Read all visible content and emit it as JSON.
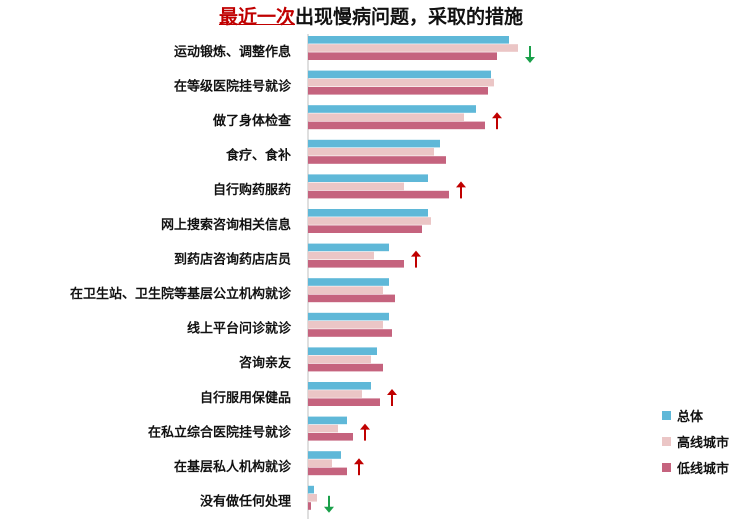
{
  "title": {
    "emphasis": "最近一次",
    "rest": "出现慢病问题，采取的措施"
  },
  "colors": {
    "total": "#5fb8d8",
    "high_tier": "#ebc6c6",
    "low_tier": "#c5637e",
    "up_arrow": "#c00000",
    "down_arrow": "#1aa04a"
  },
  "chart_data": {
    "type": "bar",
    "orientation": "horizontal",
    "title": "最近一次出现慢病问题，采取的措施",
    "categories": [
      "运动锻炼、调整作息",
      "在等级医院挂号就诊",
      "做了身体检查",
      "食疗、食补",
      "自行购药服药",
      "网上搜索咨询相关信息",
      "到药店咨询药店店员",
      "在卫生站、卫生院等基层公立机构就诊",
      "线上平台问诊就诊",
      "咨询亲友",
      "自行服用保健品",
      "在私立综合医院挂号就诊",
      "在基层私人机构就诊",
      "没有做任何处理"
    ],
    "series": [
      {
        "name": "总体",
        "values": [
          67,
          61,
          56,
          44,
          40,
          40,
          27,
          27,
          27,
          23,
          21,
          13,
          11,
          2
        ]
      },
      {
        "name": "高线城市",
        "values": [
          70,
          62,
          52,
          42,
          32,
          41,
          22,
          25,
          25,
          21,
          18,
          10,
          8,
          3
        ]
      },
      {
        "name": "低线城市",
        "values": [
          63,
          60,
          59,
          46,
          47,
          38,
          32,
          29,
          28,
          25,
          24,
          15,
          13,
          1
        ]
      }
    ],
    "indicators": [
      "down",
      "",
      "up",
      "",
      "up",
      "",
      "up",
      "",
      "",
      "",
      "up",
      "up",
      "up",
      "down"
    ],
    "legend": [
      "总体",
      "高线城市",
      "低线城市"
    ],
    "legend_position": "right-bottom",
    "xlim": [
      0,
      100
    ],
    "grid": false
  }
}
